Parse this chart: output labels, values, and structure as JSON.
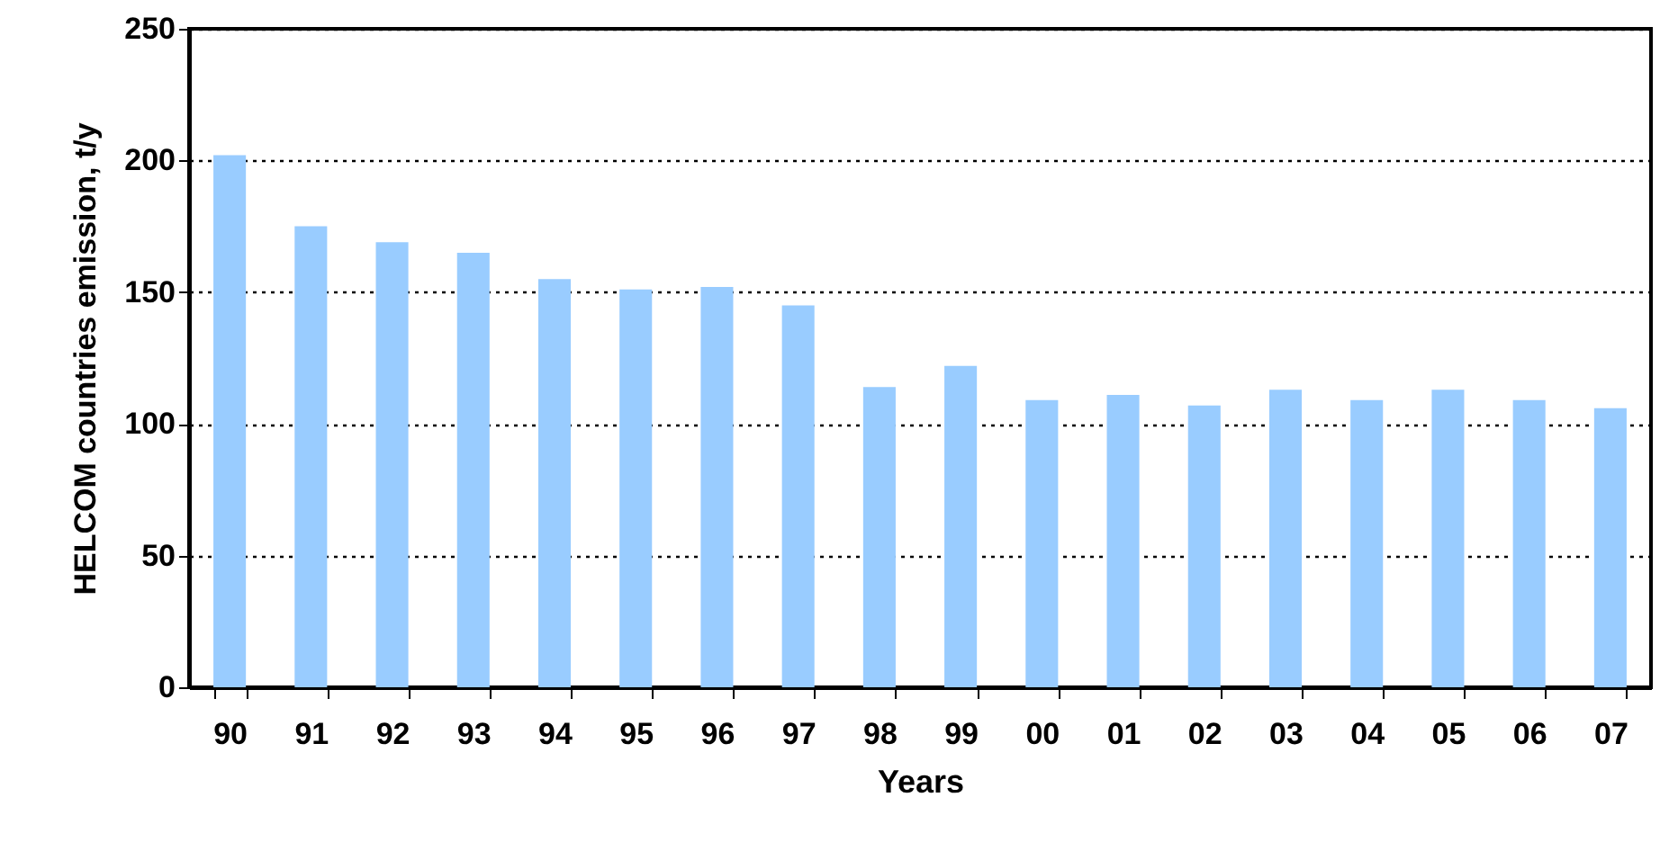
{
  "chart_data": {
    "type": "bar",
    "xlabel": "Years",
    "ylabel": "HELCOM countries emission, t/y",
    "categories": [
      "90",
      "91",
      "92",
      "93",
      "94",
      "95",
      "96",
      "97",
      "98",
      "99",
      "00",
      "01",
      "02",
      "03",
      "04",
      "05",
      "06",
      "07"
    ],
    "values": [
      202,
      175,
      169,
      165,
      155,
      151,
      152,
      145,
      114,
      122,
      109,
      111,
      107,
      113,
      109,
      113,
      109,
      106
    ],
    "color": "#99ccff",
    "ylim": [
      0,
      250
    ],
    "yticks": [
      0,
      50,
      100,
      150,
      200,
      250
    ],
    "grid": "y"
  }
}
